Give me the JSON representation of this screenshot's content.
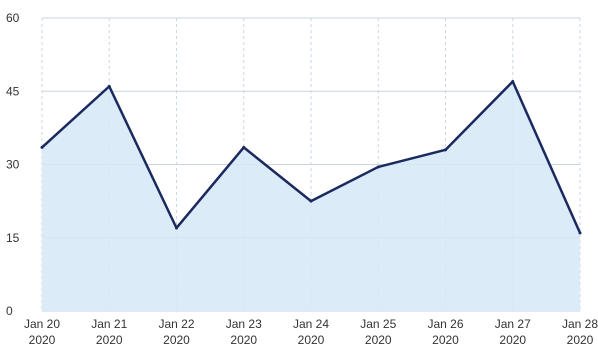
{
  "chart_data": {
    "type": "area",
    "x": [
      "Jan 20 2020",
      "Jan 21 2020",
      "Jan 22 2020",
      "Jan 23 2020",
      "Jan 24 2020",
      "Jan 25 2020",
      "Jan 26 2020",
      "Jan 27 2020",
      "Jan 28 2020"
    ],
    "x_tick_labels": [
      [
        "Jan 20",
        "2020"
      ],
      [
        "Jan 21",
        "2020"
      ],
      [
        "Jan 22",
        "2020"
      ],
      [
        "Jan 23",
        "2020"
      ],
      [
        "Jan 24",
        "2020"
      ],
      [
        "Jan 25",
        "2020"
      ],
      [
        "Jan 26",
        "2020"
      ],
      [
        "Jan 27",
        "2020"
      ],
      [
        "Jan 28",
        "2020"
      ]
    ],
    "series": [
      {
        "values": [
          33.5,
          46,
          17,
          33.5,
          22.5,
          29.5,
          33,
          47,
          16
        ],
        "line_color": "#1a2a5e",
        "fill_color": "#d6e8f7"
      }
    ],
    "y_ticks": [
      0,
      15,
      30,
      45,
      60
    ],
    "ylim": [
      0,
      60
    ],
    "grid": true,
    "grid_color": "#c9d6e3",
    "title": "",
    "xlabel": "",
    "ylabel": ""
  }
}
